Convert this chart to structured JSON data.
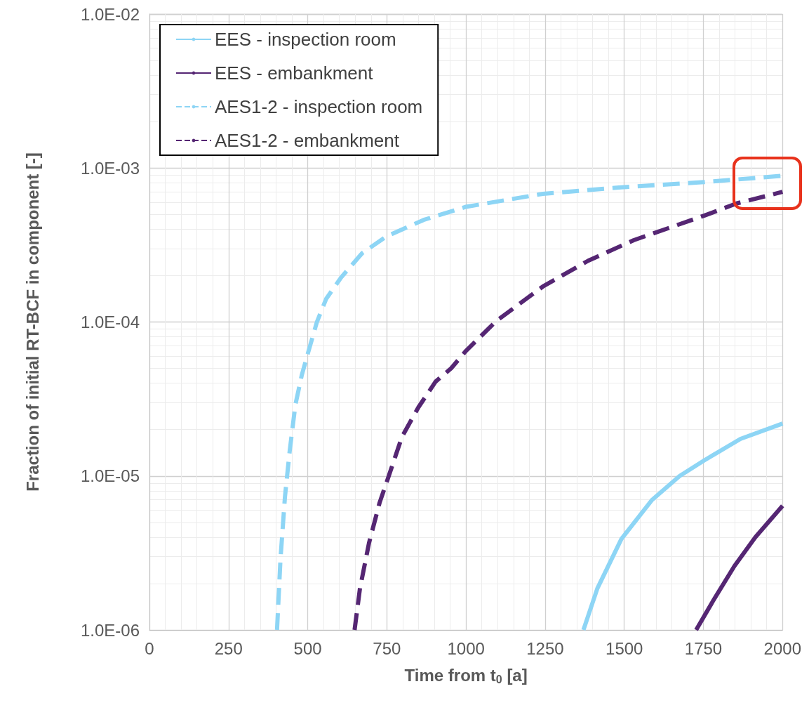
{
  "chart_data": {
    "type": "line",
    "xlabel": "Time from t$_{0}$ [a]",
    "ylabel": "Fraction of initial RT-BCF in component [-]",
    "xlim": [
      0,
      2000
    ],
    "xticks": [
      0,
      250,
      500,
      750,
      1000,
      1250,
      1500,
      1750,
      2000
    ],
    "ylim": [
      1e-06,
      0.01
    ],
    "yticks": [
      {
        "value": 1e-06,
        "label": "1.0E-06"
      },
      {
        "value": 1e-05,
        "label": "1.0E-05"
      },
      {
        "value": 0.0001,
        "label": "1.0E-04"
      },
      {
        "value": 0.001,
        "label": "1.0E-03"
      },
      {
        "value": 0.01,
        "label": "1.0E-02"
      }
    ],
    "log": "y",
    "grid": true,
    "legend": "top left",
    "marker": "none",
    "series": [
      {
        "name": "EES - inspection room",
        "color": "#8dd5f5",
        "line_style": "solid",
        "x": [
          1371,
          1415,
          1491,
          1588,
          1675,
          1752,
          1867,
          2000
        ],
        "values": [
          1e-06,
          1.86e-06,
          3.9e-06,
          7e-06,
          1e-05,
          1.26e-05,
          1.74e-05,
          2.19e-05
        ]
      },
      {
        "name": "EES - embankment",
        "color": "#552673",
        "line_style": "solid",
        "x": [
          1727,
          1781,
          1848,
          1914,
          2000
        ],
        "values": [
          1e-06,
          1.55e-06,
          2.6e-06,
          4e-06,
          6.4e-06
        ]
      },
      {
        "name": "AES1-2 - inspection room",
        "color": "#8dd5f5",
        "line_style": "dashed",
        "x": [
          403,
          414,
          428,
          443,
          461,
          481,
          500,
          529,
          558,
          605,
          672,
          749,
          866,
          1000,
          1243,
          1490,
          1752,
          2000
        ],
        "values": [
          1e-06,
          2.9e-06,
          7.3e-06,
          1.45e-05,
          2.9e-05,
          4.5e-05,
          6.2e-05,
          0.0001,
          0.000141,
          0.000194,
          0.00028,
          0.00036,
          0.00046,
          0.00056,
          0.00068,
          0.00075,
          0.00081,
          0.00089
        ]
      },
      {
        "name": "AES1-2 - embankment",
        "color": "#552673",
        "line_style": "dashed",
        "x": [
          648,
          665,
          694,
          727,
          756,
          798,
          850,
          904,
          953,
          1000,
          1097,
          1243,
          1386,
          1530,
          1752,
          1856,
          2000
        ],
        "values": [
          1e-06,
          1.86e-06,
          3.7e-06,
          6.7e-06,
          1e-05,
          1.8e-05,
          2.8e-05,
          4.1e-05,
          5e-05,
          6.5e-05,
          0.000102,
          0.00017,
          0.00025,
          0.00034,
          0.00049,
          0.00059,
          0.0007
        ]
      }
    ]
  }
}
